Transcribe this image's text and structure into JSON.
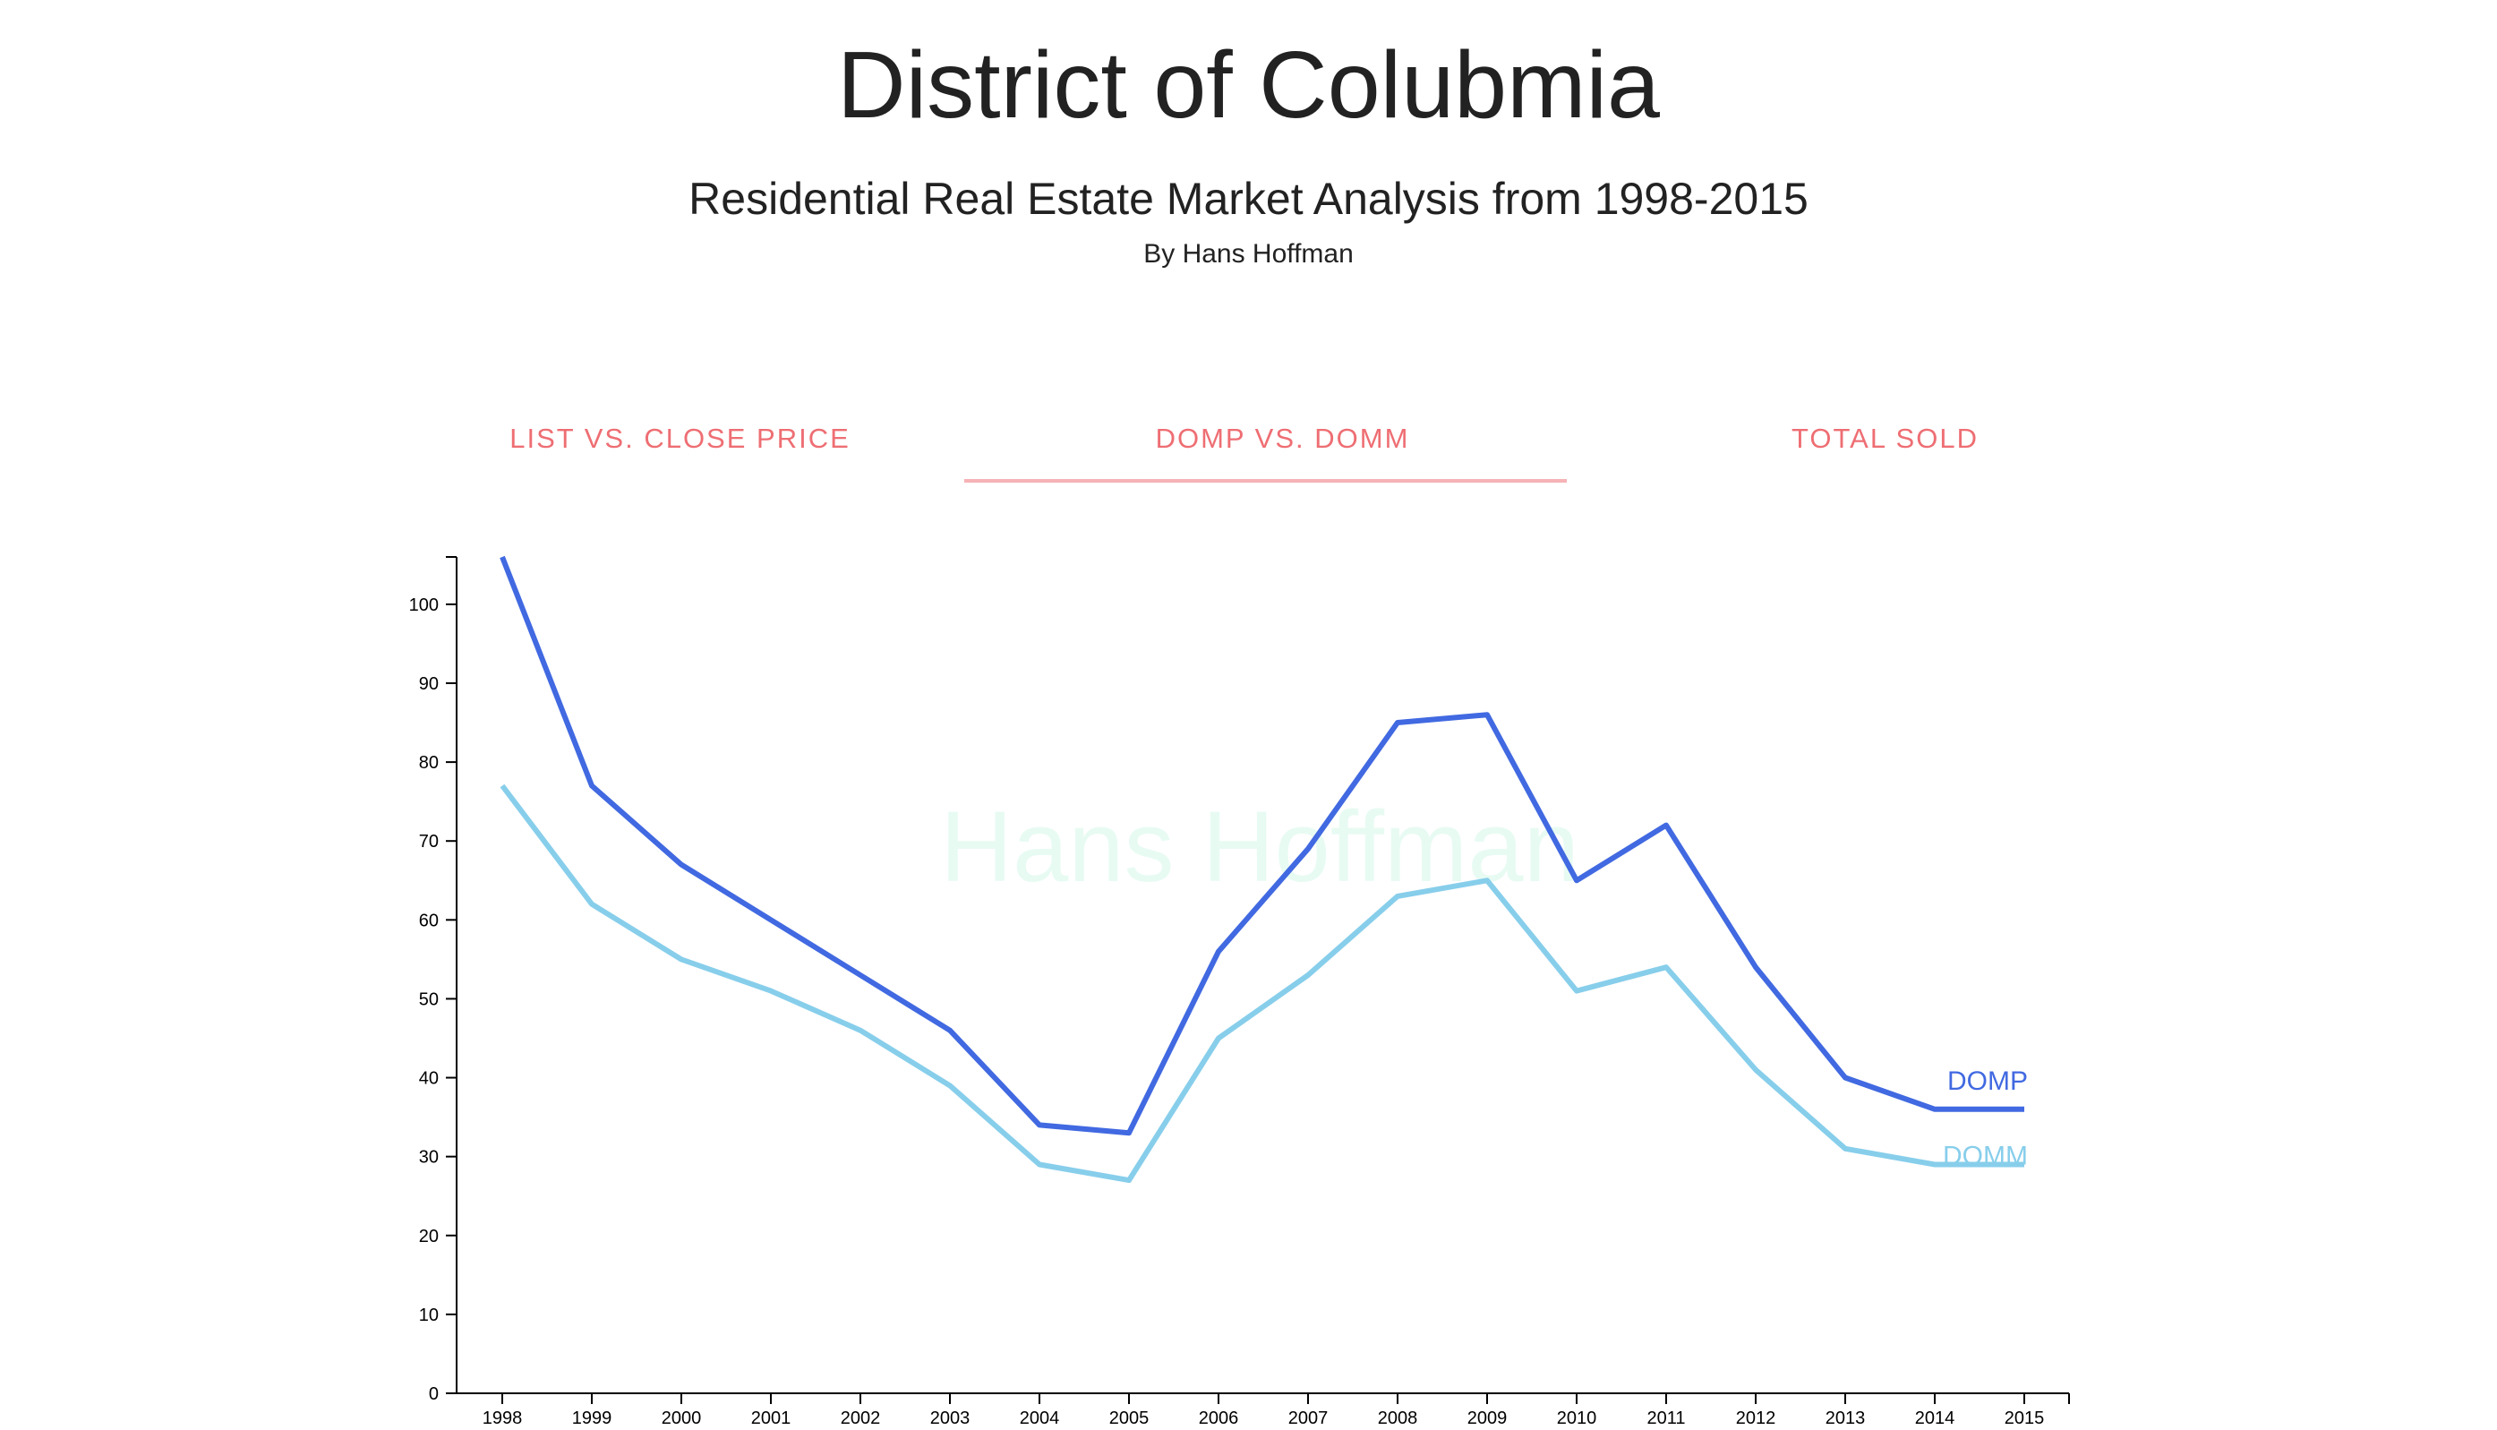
{
  "header": {
    "title": "District of Colubmia",
    "subtitle": "Residential Real Estate Market Analysis from 1998-2015",
    "author": "By Hans Hoffman"
  },
  "tabs": [
    {
      "label": "LIST VS. CLOSE PRICE",
      "active": false
    },
    {
      "label": "DOMP VS. DOMM",
      "active": true
    },
    {
      "label": "TOTAL SOLD",
      "active": false
    }
  ],
  "colors": {
    "tab_text": "#ee6e73",
    "tab_indicator": "#f6b2b5",
    "domp": "#4169e1",
    "domm": "#87ceeb",
    "watermark": "#e8fbf3"
  },
  "chart_data": {
    "type": "line",
    "watermark": "Hans Hoffman",
    "x": [
      1998,
      1999,
      2000,
      2001,
      2002,
      2003,
      2004,
      2005,
      2006,
      2007,
      2008,
      2009,
      2010,
      2011,
      2012,
      2013,
      2014,
      2015
    ],
    "series": [
      {
        "name": "DOMP",
        "color": "#4169e1",
        "values": [
          106,
          77,
          67,
          60,
          53,
          46,
          34,
          33,
          56,
          69,
          85,
          86,
          65,
          72,
          54,
          40,
          36,
          36
        ]
      },
      {
        "name": "DOMM",
        "color": "#87ceeb",
        "values": [
          77,
          62,
          55,
          51,
          46,
          39,
          29,
          27,
          45,
          53,
          63,
          65,
          51,
          54,
          41,
          31,
          29,
          29
        ]
      }
    ],
    "yticks": [
      0,
      10,
      20,
      30,
      40,
      50,
      60,
      70,
      80,
      90,
      100
    ],
    "ylim": [
      0,
      106
    ],
    "xlabel": "",
    "ylabel": "",
    "grid": false,
    "legend": "inline-right"
  }
}
